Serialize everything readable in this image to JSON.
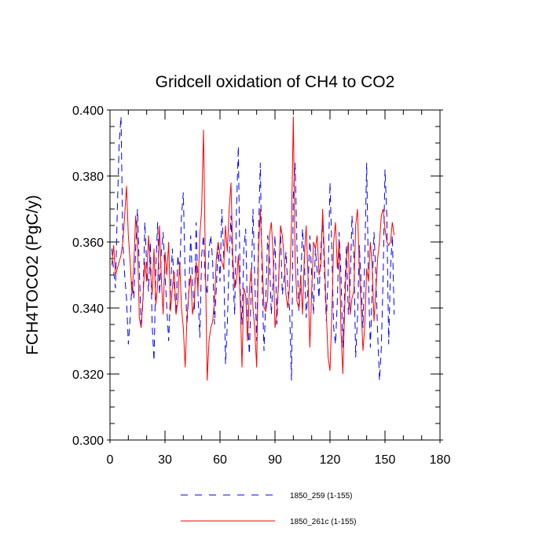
{
  "chart_data": {
    "type": "line",
    "title": "Gridcell oxidation of CH4 to CO2",
    "xlabel": "",
    "ylabel": "FCH4TOCO2  (PgC/y)",
    "xlim": [
      0,
      180
    ],
    "ylim": [
      0.3,
      0.4
    ],
    "xticks": [
      0,
      30,
      60,
      90,
      120,
      150,
      180
    ],
    "xtick_labels": [
      "0",
      "30",
      "60",
      "90",
      "120",
      "150",
      "180"
    ],
    "yticks": [
      0.3,
      0.32,
      0.34,
      0.36,
      0.38,
      0.4
    ],
    "ytick_labels": [
      "0.300",
      "0.320",
      "0.340",
      "0.360",
      "0.380",
      "0.400"
    ],
    "legend_position": "bottom-center",
    "series": [
      {
        "name": "1850_259 (1-155)",
        "color": "#0000ff",
        "dash": "dashed",
        "x_start": 1,
        "values": [
          0.358,
          0.351,
          0.346,
          0.37,
          0.39,
          0.398,
          0.36,
          0.35,
          0.343,
          0.329,
          0.337,
          0.348,
          0.343,
          0.358,
          0.37,
          0.352,
          0.334,
          0.342,
          0.366,
          0.353,
          0.345,
          0.36,
          0.335,
          0.324,
          0.352,
          0.366,
          0.344,
          0.357,
          0.363,
          0.35,
          0.34,
          0.33,
          0.345,
          0.358,
          0.347,
          0.338,
          0.356,
          0.35,
          0.368,
          0.375,
          0.349,
          0.335,
          0.345,
          0.362,
          0.348,
          0.339,
          0.366,
          0.344,
          0.331,
          0.356,
          0.362,
          0.348,
          0.344,
          0.358,
          0.362,
          0.354,
          0.335,
          0.346,
          0.359,
          0.348,
          0.37,
          0.356,
          0.323,
          0.335,
          0.355,
          0.368,
          0.35,
          0.338,
          0.37,
          0.389,
          0.346,
          0.335,
          0.358,
          0.364,
          0.338,
          0.326,
          0.345,
          0.37,
          0.348,
          0.33,
          0.362,
          0.384,
          0.347,
          0.327,
          0.343,
          0.362,
          0.355,
          0.338,
          0.349,
          0.362,
          0.335,
          0.349,
          0.364,
          0.344,
          0.349,
          0.357,
          0.346,
          0.339,
          0.318,
          0.374,
          0.384,
          0.358,
          0.339,
          0.347,
          0.364,
          0.355,
          0.337,
          0.346,
          0.362,
          0.35,
          0.338,
          0.358,
          0.351,
          0.343,
          0.358,
          0.367,
          0.35,
          0.336,
          0.35,
          0.378,
          0.358,
          0.334,
          0.329,
          0.342,
          0.363,
          0.35,
          0.328,
          0.345,
          0.359,
          0.338,
          0.347,
          0.368,
          0.356,
          0.325,
          0.337,
          0.359,
          0.347,
          0.334,
          0.356,
          0.384,
          0.348,
          0.328,
          0.345,
          0.363,
          0.35,
          0.332,
          0.318,
          0.328,
          0.35,
          0.382,
          0.368,
          0.329,
          0.352,
          0.362,
          0.338
        ]
      },
      {
        "name": "1850_261c (1-155)",
        "color": "#ff0000",
        "dash": "solid",
        "x_start": 1,
        "values": [
          0.353,
          0.359,
          0.35,
          0.352,
          0.354,
          0.356,
          0.36,
          0.368,
          0.377,
          0.362,
          0.354,
          0.344,
          0.353,
          0.368,
          0.36,
          0.337,
          0.334,
          0.343,
          0.354,
          0.348,
          0.362,
          0.352,
          0.344,
          0.358,
          0.341,
          0.347,
          0.365,
          0.349,
          0.338,
          0.357,
          0.35,
          0.36,
          0.339,
          0.346,
          0.351,
          0.338,
          0.342,
          0.354,
          0.34,
          0.334,
          0.322,
          0.337,
          0.345,
          0.35,
          0.338,
          0.342,
          0.354,
          0.345,
          0.362,
          0.37,
          0.394,
          0.355,
          0.318,
          0.33,
          0.334,
          0.336,
          0.342,
          0.355,
          0.36,
          0.356,
          0.354,
          0.352,
          0.365,
          0.357,
          0.37,
          0.378,
          0.355,
          0.346,
          0.348,
          0.356,
          0.343,
          0.322,
          0.346,
          0.344,
          0.33,
          0.345,
          0.352,
          0.34,
          0.333,
          0.322,
          0.357,
          0.37,
          0.355,
          0.34,
          0.339,
          0.343,
          0.362,
          0.366,
          0.356,
          0.334,
          0.339,
          0.348,
          0.365,
          0.362,
          0.355,
          0.344,
          0.34,
          0.347,
          0.365,
          0.398,
          0.354,
          0.342,
          0.34,
          0.35,
          0.338,
          0.355,
          0.365,
          0.35,
          0.328,
          0.345,
          0.36,
          0.358,
          0.362,
          0.35,
          0.353,
          0.37,
          0.355,
          0.338,
          0.325,
          0.321,
          0.338,
          0.36,
          0.366,
          0.352,
          0.36,
          0.333,
          0.32,
          0.34,
          0.355,
          0.36,
          0.338,
          0.343,
          0.345,
          0.365,
          0.37,
          0.352,
          0.34,
          0.327,
          0.335,
          0.352,
          0.348,
          0.36,
          0.353,
          0.336,
          0.345,
          0.355,
          0.36,
          0.368,
          0.37,
          0.364,
          0.36,
          0.359,
          0.36,
          0.366,
          0.362
        ]
      }
    ]
  }
}
